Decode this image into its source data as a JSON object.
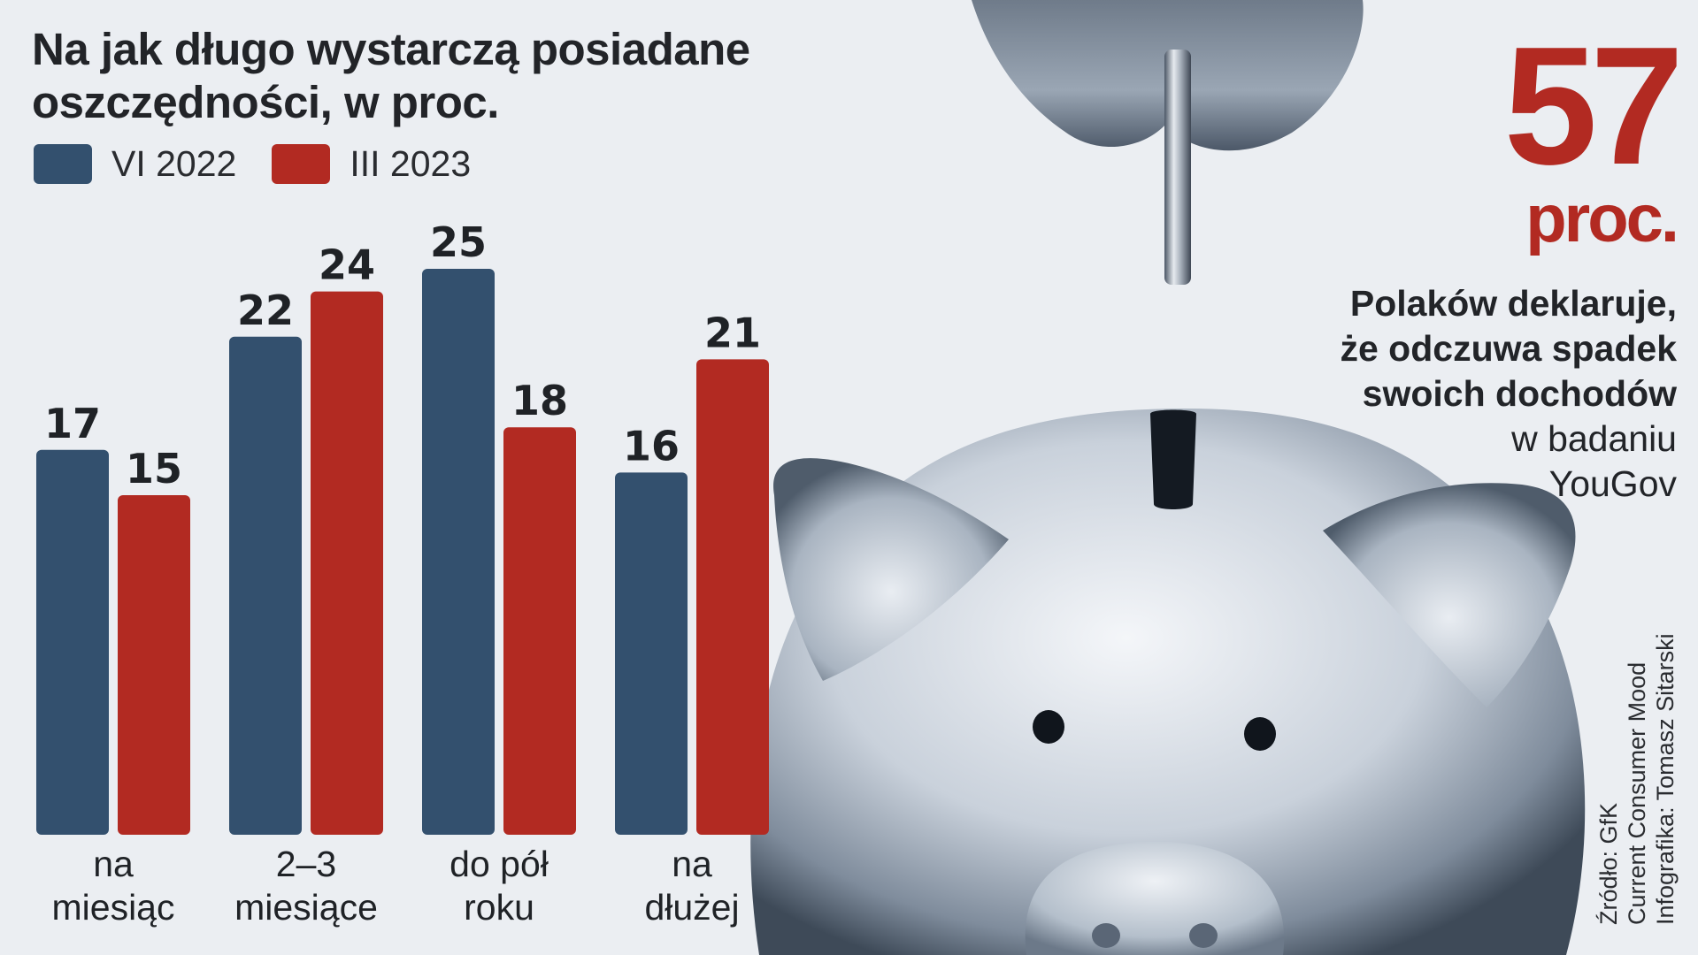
{
  "title_line1": "Na jak długo wystarczą posiadane",
  "title_line2": "oszczędności, w proc.",
  "colors": {
    "series1": "#33506e",
    "series2": "#b22a22",
    "background": "#ebeef2"
  },
  "highlight": {
    "value": "57",
    "unit": "proc.",
    "line1": "Polaków deklaruje,",
    "line2": "że odczuwa spadek",
    "line3": "swoich dochodów",
    "line4": "w badaniu",
    "line5": "YouGov"
  },
  "source": {
    "line1": "Źródło: GfK",
    "line2": "Current Consumer Mood",
    "line3": "Infografika: Tomasz Sitarski"
  },
  "chart_data": {
    "type": "bar",
    "title": "Na jak długo wystarczą posiadane oszczędności, w proc.",
    "categories": [
      [
        "na",
        "miesiąc"
      ],
      [
        "2–3",
        "miesiące"
      ],
      [
        "do pół",
        "roku"
      ],
      [
        "na",
        "dłużej"
      ]
    ],
    "series": [
      {
        "name": "VI 2022",
        "values": [
          17,
          22,
          25,
          16
        ]
      },
      {
        "name": "III 2023",
        "values": [
          15,
          24,
          18,
          21
        ]
      }
    ],
    "ylim": [
      0,
      25
    ],
    "grid": false,
    "legend_position": "top-left",
    "data_labels": true
  }
}
